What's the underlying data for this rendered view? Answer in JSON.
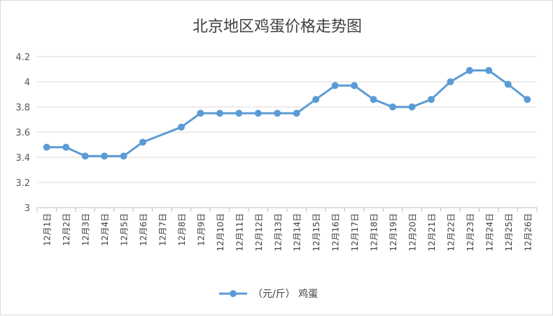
{
  "chart_data": {
    "type": "line",
    "title": "北京地区鸡蛋价格走势图",
    "xlabel": "",
    "ylabel": "",
    "categories": [
      "12月1日",
      "12月2日",
      "12月3日",
      "12月4日",
      "12月5日",
      "12月6日",
      "12月7日",
      "12月8日",
      "12月9日",
      "12月10日",
      "12月11日",
      "12月12日",
      "12月13日",
      "12月14日",
      "12月15日",
      "12月16日",
      "12月17日",
      "12月18日",
      "12月19日",
      "12月20日",
      "12月21日",
      "12月22日",
      "12月23日",
      "12月24日",
      "12月25日",
      "12月26日"
    ],
    "series": [
      {
        "name": "（元/斤） 鸡蛋",
        "values": [
          3.48,
          3.48,
          3.41,
          3.41,
          3.41,
          3.52,
          null,
          3.64,
          3.75,
          3.75,
          3.75,
          3.75,
          3.75,
          3.75,
          3.86,
          3.97,
          3.97,
          3.86,
          3.8,
          3.8,
          3.86,
          4.0,
          4.09,
          4.09,
          3.98,
          3.86
        ],
        "color": "#5b9bd5"
      }
    ],
    "ylim": [
      3,
      4.2
    ],
    "yticks": [
      "3",
      "3.2",
      "3.4",
      "3.6",
      "3.8",
      "4",
      "4.2"
    ],
    "grid": true,
    "legend_position": "bottom"
  }
}
